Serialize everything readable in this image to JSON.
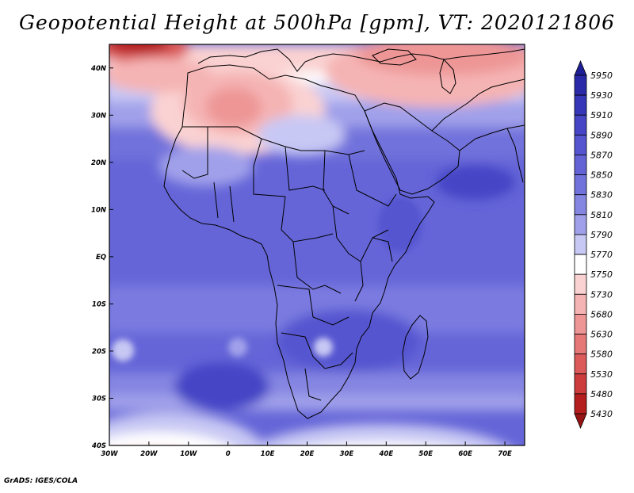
{
  "title": "Geopotential Height at 500hPa [gpm], VT: 2020121806",
  "footer": "GrADS: IGES/COLA",
  "map": {
    "lat_labels": [
      "40N",
      "30N",
      "20N",
      "10N",
      "EQ",
      "10S",
      "20S",
      "30S",
      "40S"
    ],
    "lon_labels": [
      "30W",
      "20W",
      "10W",
      "0",
      "10E",
      "20E",
      "30E",
      "40E",
      "50E",
      "60E",
      "70E"
    ],
    "lat_range": [
      -40,
      45
    ],
    "lon_range": [
      -30,
      75
    ]
  },
  "colorbar": {
    "levels": [
      "5950",
      "5930",
      "5910",
      "5890",
      "5870",
      "5850",
      "5830",
      "5810",
      "5790",
      "5770",
      "5750",
      "5730",
      "5680",
      "5630",
      "5580",
      "5530",
      "5480",
      "5430"
    ],
    "colors": [
      "#1e1e96",
      "#2a2aa8",
      "#3636b8",
      "#4545c6",
      "#5555d0",
      "#6363d6",
      "#7272dc",
      "#8585e2",
      "#a0a0ea",
      "#c8c8f4",
      "#ffffff",
      "#fad2d2",
      "#f5b4b4",
      "#ee9696",
      "#e67878",
      "#dc5a5a",
      "#cc3c3c",
      "#b41e1e",
      "#961414"
    ],
    "top_arrow_color": "#1e1e96",
    "bottom_arrow_color": "#961414"
  }
}
